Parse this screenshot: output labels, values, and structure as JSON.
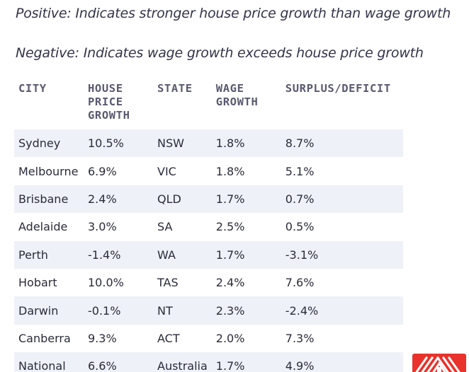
{
  "notes": {
    "positive": "Positive: Indicates stronger house price growth than wage growth",
    "negative": "Negative: Indicates wage growth exceeds house price growth"
  },
  "table": {
    "headers": {
      "city": "CITY",
      "house_price_growth_line1": "HOUSE",
      "house_price_growth_line2": "PRICE",
      "house_price_growth_line3": "GROWTH",
      "state": "STATE",
      "wage_growth_line1": "WAGE",
      "wage_growth_line2": "GROWTH",
      "surplus_deficit": "SURPLUS/DEFICIT"
    },
    "rows": [
      {
        "city": "Sydney",
        "house_price_growth": "10.5%",
        "state": "NSW",
        "wage_growth": "1.8%",
        "surplus_deficit": "8.7%"
      },
      {
        "city": "Melbourne",
        "house_price_growth": "6.9%",
        "state": "VIC",
        "wage_growth": "1.8%",
        "surplus_deficit": "5.1%"
      },
      {
        "city": "Brisbane",
        "house_price_growth": "2.4%",
        "state": "QLD",
        "wage_growth": "1.7%",
        "surplus_deficit": "0.7%"
      },
      {
        "city": "Adelaide",
        "house_price_growth": "3.0%",
        "state": "SA",
        "wage_growth": "2.5%",
        "surplus_deficit": "0.5%"
      },
      {
        "city": "Perth",
        "house_price_growth": "-1.4%",
        "state": "WA",
        "wage_growth": "1.7%",
        "surplus_deficit": "-3.1%"
      },
      {
        "city": "Hobart",
        "house_price_growth": "10.0%",
        "state": "TAS",
        "wage_growth": "2.4%",
        "surplus_deficit": "7.6%"
      },
      {
        "city": "Darwin",
        "house_price_growth": "-0.1%",
        "state": "NT",
        "wage_growth": "2.3%",
        "surplus_deficit": "-2.4%"
      },
      {
        "city": "Canberra",
        "house_price_growth": "9.3%",
        "state": "ACT",
        "wage_growth": "2.0%",
        "surplus_deficit": "7.3%"
      },
      {
        "city": "National",
        "house_price_growth": "6.6%",
        "state": "Australia",
        "wage_growth": "1.7%",
        "surplus_deficit": "4.9%"
      }
    ]
  },
  "logo": {
    "icon": "house-roof-logo-icon",
    "color": "#e8322b"
  }
}
